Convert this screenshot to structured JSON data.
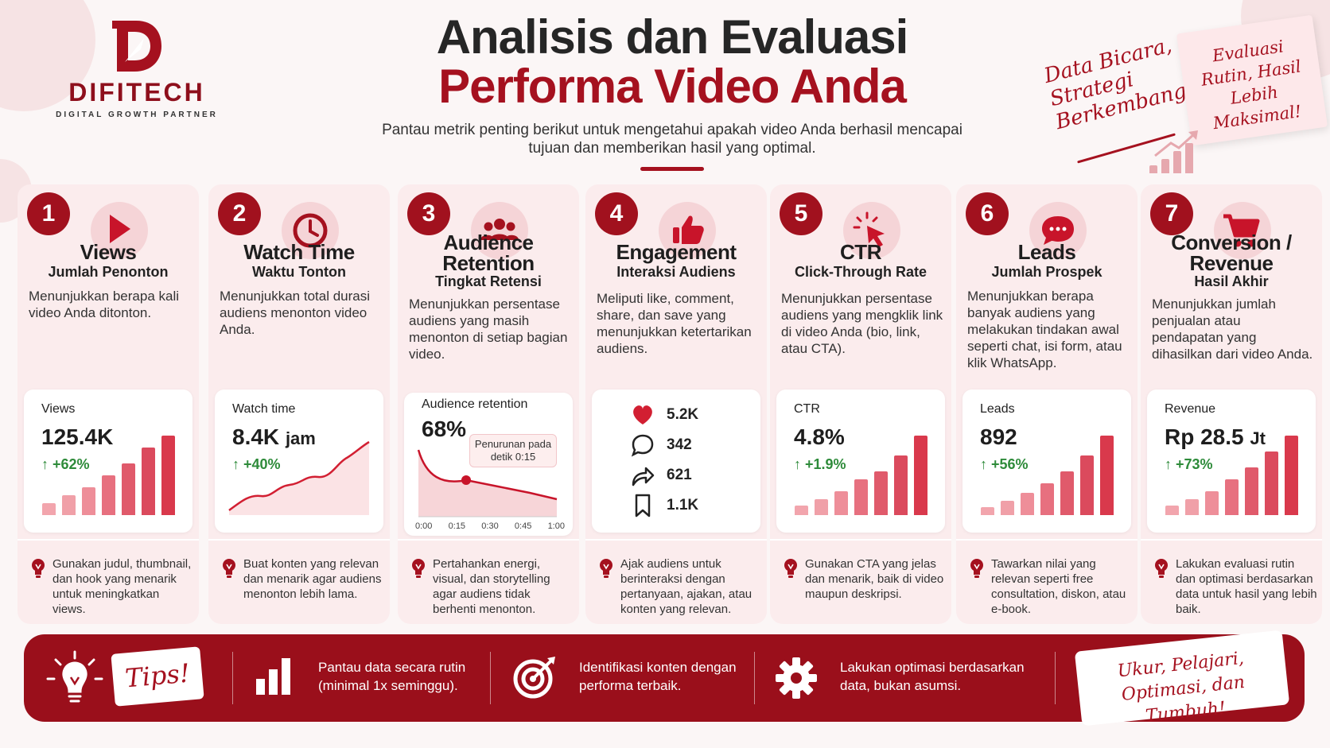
{
  "brand": {
    "name": "DIFITECH",
    "tagline": "DIGITAL GROWTH PARTNER"
  },
  "header": {
    "title_line1": "Analisis dan Evaluasi",
    "title_line2": "Performa Video Anda",
    "subtitle": "Pantau metrik penting berikut untuk mengetahui apakah video Anda berhasil mencapai tujuan dan memberikan hasil yang optimal."
  },
  "side_notes": {
    "handwritten": "Data Bicara, Strategi Berkembang!",
    "sticky_note": "Evaluasi Rutin, Hasil Lebih Maksimal!"
  },
  "colors": {
    "brand_red": "#a5111f",
    "bar_dark": "#d9394c",
    "bar_light": "#f2a5ad",
    "growth_green": "#2e8b3a"
  },
  "metrics": [
    {
      "number": "1",
      "icon": "play-icon",
      "title": "Views",
      "subtitle": "Jumlah Penonton",
      "description": "Menunjukkan berapa kali video Anda ditonton.",
      "panel": {
        "label": "Views",
        "value": "125.4K",
        "unit": "",
        "growth": "+62%",
        "bars": [
          0.15,
          0.25,
          0.35,
          0.5,
          0.65,
          0.85,
          1.0
        ]
      },
      "tip": "Gunakan judul, thumbnail, dan hook yang menarik untuk meningkatkan views."
    },
    {
      "number": "2",
      "icon": "clock-icon",
      "title": "Watch Time",
      "subtitle": "Waktu Tonton",
      "description": "Menunjukkan total durasi audiens menonton video Anda.",
      "panel": {
        "label": "Watch time",
        "value": "8.4K",
        "unit": "jam",
        "growth": "+40%"
      },
      "tip": "Buat konten yang relevan dan menarik agar audiens menonton lebih lama."
    },
    {
      "number": "3",
      "icon": "group-icon",
      "title": "Audience Retention",
      "subtitle": "Tingkat Retensi",
      "description": "Menunjukkan persentase audiens yang masih menonton di setiap bagian video.",
      "panel": {
        "label": "Audience retention",
        "value": "68%",
        "callout": "Penurunan pada detik 0:15",
        "x_ticks": [
          "0:00",
          "0:15",
          "0:30",
          "0:45",
          "1:00"
        ]
      },
      "tip": "Pertahankan energi, visual, dan storytelling agar audiens tidak berhenti menonton."
    },
    {
      "number": "4",
      "icon": "thumbs-up-icon",
      "title": "Engagement",
      "subtitle": "Interaksi Audiens",
      "description": "Meliputi like, comment, share, dan save yang menunjukkan ketertarikan audiens.",
      "panel": {
        "likes": "5.2K",
        "comments": "342",
        "shares": "621",
        "saves": "1.1K"
      },
      "tip": "Ajak audiens untuk berinteraksi dengan pertanyaan, ajakan, atau konten yang relevan."
    },
    {
      "number": "5",
      "icon": "cursor-click-icon",
      "title": "CTR",
      "subtitle": "Click-Through Rate",
      "description": "Menunjukkan persentase audiens yang mengklik link di video Anda (bio, link, atau CTA).",
      "panel": {
        "label": "CTR",
        "value": "4.8%",
        "unit": "",
        "growth": "+1.9%",
        "bars": [
          0.12,
          0.2,
          0.3,
          0.45,
          0.55,
          0.75,
          1.0
        ]
      },
      "tip": "Gunakan CTA yang jelas dan menarik, baik di video maupun deskripsi."
    },
    {
      "number": "6",
      "icon": "chat-icon",
      "title": "Leads",
      "subtitle": "Jumlah Prospek",
      "description": "Menunjukkan berapa banyak audiens yang melakukan tindakan awal seperti chat, isi form, atau klik WhatsApp.",
      "panel": {
        "label": "Leads",
        "value": "892",
        "unit": "",
        "growth": "+56%",
        "bars": [
          0.1,
          0.18,
          0.28,
          0.4,
          0.55,
          0.75,
          1.0
        ]
      },
      "tip": "Tawarkan nilai yang relevan seperti free consultation, diskon, atau e-book."
    },
    {
      "number": "7",
      "icon": "cart-icon",
      "title": "Conversion / Revenue",
      "subtitle": "Hasil Akhir",
      "description": "Menunjukkan jumlah penjualan atau pendapatan yang dihasilkan dari video Anda.",
      "panel": {
        "label": "Revenue",
        "value": "Rp 28.5",
        "unit": "Jt",
        "growth": "+73%",
        "bars": [
          0.12,
          0.2,
          0.3,
          0.45,
          0.6,
          0.8,
          1.0
        ]
      },
      "tip": "Lakukan evaluasi rutin dan optimasi berdasarkan data untuk hasil yang lebih baik."
    }
  ],
  "footer": {
    "tips_label": "Tips!",
    "items": [
      "Pantau data secara rutin (minimal 1x seminggu).",
      "Identifikasi konten dengan performa terbaik.",
      "Lakukan optimasi berdasarkan data, bukan asumsi."
    ],
    "slogan": "Ukur, Pelajari, Optimasi, dan Tumbuh!"
  }
}
